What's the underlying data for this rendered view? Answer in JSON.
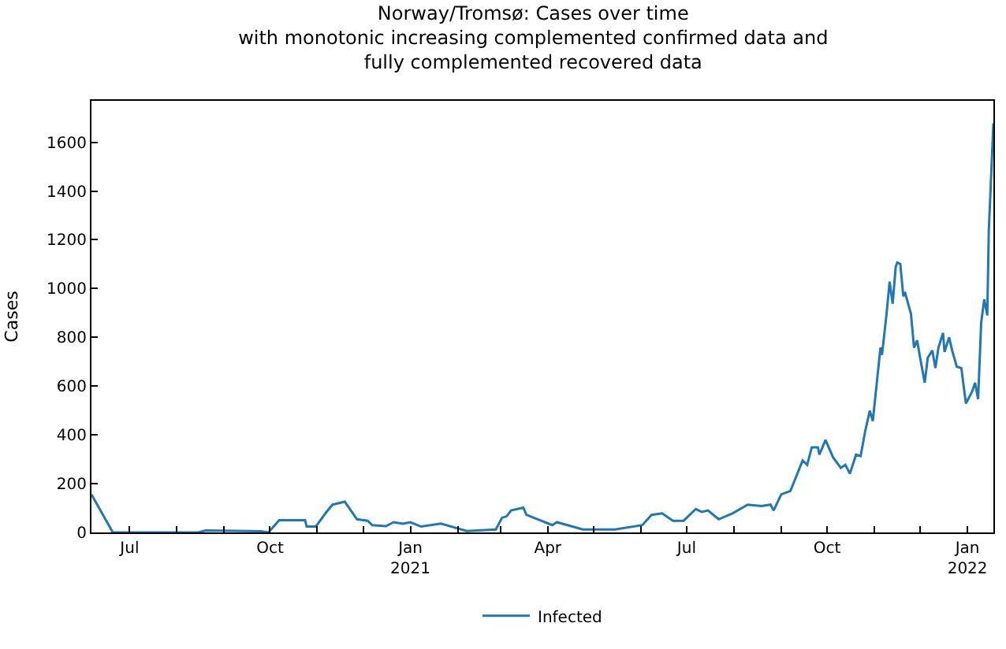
{
  "chart_data": {
    "type": "line",
    "title": "Norway/Tromsø: Cases over time\nwith monotonic increasing complemented confirmed data and\nfully complemented recovered data",
    "ylabel": "Cases",
    "series": [
      {
        "name": "Infected",
        "color": "#1f77b4",
        "x": [
          "2020-06-06",
          "2020-06-20",
          "2020-08-15",
          "2020-08-20",
          "2020-09-25",
          "2020-09-30",
          "2020-10-07",
          "2020-10-24",
          "2020-10-25",
          "2020-10-31",
          "2020-11-07",
          "2020-11-11",
          "2020-11-19",
          "2020-11-27",
          "2020-12-04",
          "2020-12-07",
          "2020-12-16",
          "2020-12-21",
          "2020-12-27",
          "2021-01-01",
          "2021-01-08",
          "2021-01-21",
          "2021-02-07",
          "2021-02-26",
          "2021-03-02",
          "2021-03-05",
          "2021-03-08",
          "2021-03-16",
          "2021-03-18",
          "2021-04-04",
          "2021-04-07",
          "2021-04-24",
          "2021-05-15",
          "2021-06-02",
          "2021-06-08",
          "2021-06-15",
          "2021-06-22",
          "2021-06-29",
          "2021-07-07",
          "2021-07-11",
          "2021-07-15",
          "2021-07-22",
          "2021-07-31",
          "2021-08-10",
          "2021-08-19",
          "2021-08-25",
          "2021-08-27",
          "2021-09-01",
          "2021-09-07",
          "2021-09-15",
          "2021-09-18",
          "2021-09-21",
          "2021-09-25",
          "2021-09-26",
          "2021-09-30",
          "2021-10-05",
          "2021-10-10",
          "2021-10-13",
          "2021-10-16",
          "2021-10-20",
          "2021-10-23",
          "2021-10-26",
          "2021-10-29",
          "2021-10-31",
          "2021-11-05",
          "2021-11-06",
          "2021-11-09",
          "2021-11-11",
          "2021-11-13",
          "2021-11-15",
          "2021-11-16",
          "2021-11-18",
          "2021-11-20",
          "2021-11-21",
          "2021-11-25",
          "2021-11-27",
          "2021-11-29",
          "2021-12-01",
          "2021-12-04",
          "2021-12-06",
          "2021-12-09",
          "2021-12-11",
          "2021-12-13",
          "2021-12-16",
          "2021-12-17",
          "2021-12-20",
          "2021-12-22",
          "2021-12-25",
          "2021-12-28",
          "2021-12-31",
          "2022-01-04",
          "2022-01-06",
          "2022-01-08",
          "2022-01-10",
          "2022-01-12",
          "2022-01-14",
          "2022-01-15",
          "2022-01-18"
        ],
        "values": [
          156,
          0,
          0,
          8,
          5,
          0,
          50,
          50,
          24,
          24,
          84,
          114,
          126,
          54,
          48,
          30,
          26,
          42,
          36,
          42,
          24,
          36,
          6,
          12,
          60,
          66,
          90,
          102,
          72,
          30,
          42,
          12,
          12,
          30,
          72,
          78,
          48,
          48,
          96,
          84,
          90,
          54,
          78,
          114,
          108,
          114,
          90,
          156,
          170,
          295,
          277,
          349,
          349,
          319,
          379,
          307,
          265,
          277,
          241,
          319,
          313,
          415,
          499,
          457,
          758,
          728,
          896,
          1028,
          938,
          1089,
          1107,
          1101,
          968,
          986,
          896,
          758,
          788,
          716,
          614,
          716,
          746,
          674,
          758,
          818,
          740,
          800,
          746,
          680,
          674,
          529,
          577,
          614,
          547,
          860,
          956,
          890,
          1239,
          1678
        ]
      }
    ],
    "xlim": [
      "2020-06-06",
      "2022-01-18"
    ],
    "xticks": [
      {
        "value": "2020-07-01",
        "label": "Jul"
      },
      {
        "value": "2020-08-01",
        "label": null
      },
      {
        "value": "2020-09-01",
        "label": null
      },
      {
        "value": "2020-10-01",
        "label": "Oct"
      },
      {
        "value": "2020-11-01",
        "label": null
      },
      {
        "value": "2020-12-01",
        "label": null
      },
      {
        "value": "2021-01-01",
        "label": "Jan\n2021"
      },
      {
        "value": "2021-02-01",
        "label": null
      },
      {
        "value": "2021-03-01",
        "label": null
      },
      {
        "value": "2021-04-01",
        "label": "Apr"
      },
      {
        "value": "2021-05-01",
        "label": null
      },
      {
        "value": "2021-06-01",
        "label": null
      },
      {
        "value": "2021-07-01",
        "label": "Jul"
      },
      {
        "value": "2021-08-01",
        "label": null
      },
      {
        "value": "2021-09-01",
        "label": null
      },
      {
        "value": "2021-10-01",
        "label": "Oct"
      },
      {
        "value": "2021-11-01",
        "label": null
      },
      {
        "value": "2021-12-01",
        "label": null
      },
      {
        "value": "2022-01-01",
        "label": "Jan\n2022"
      }
    ],
    "ylim": [
      0,
      1770
    ],
    "yticks": [
      0,
      200,
      400,
      600,
      800,
      1000,
      1200,
      1400,
      1600
    ],
    "legend": "bottom",
    "marker": "none",
    "line_style": "solid"
  }
}
